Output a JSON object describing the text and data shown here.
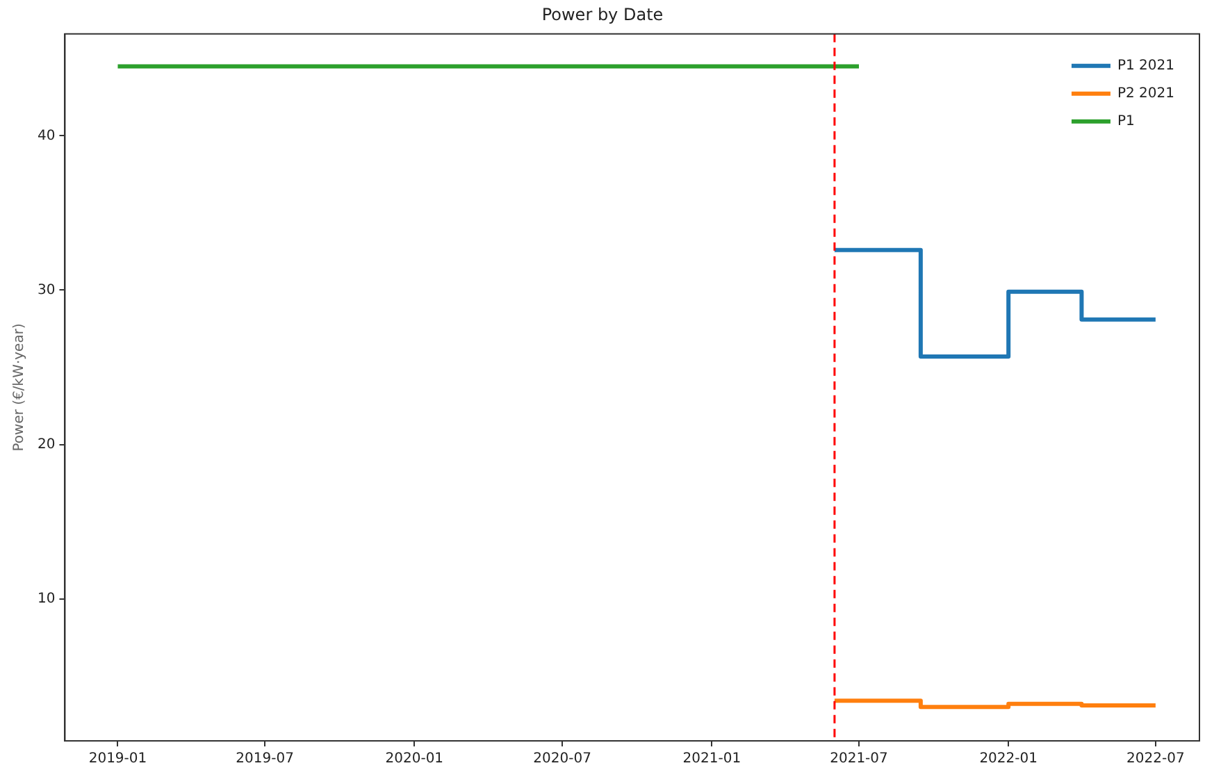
{
  "chart_data": {
    "type": "step",
    "title": "Power by Date",
    "ylabel": "Power (€/kW·year)",
    "xlim": [
      "2018-10-28",
      "2022-08-24"
    ],
    "xticks": [
      {
        "value": "2019-01",
        "label": "2019-01"
      },
      {
        "value": "2019-07",
        "label": "2019-07"
      },
      {
        "value": "2020-01",
        "label": "2020-01"
      },
      {
        "value": "2020-07",
        "label": "2020-07"
      },
      {
        "value": "2021-01",
        "label": "2021-01"
      },
      {
        "value": "2021-07",
        "label": "2021-07"
      },
      {
        "value": "2022-01",
        "label": "2022-01"
      },
      {
        "value": "2022-07",
        "label": "2022-07"
      }
    ],
    "ylim": [
      0.8,
      46.6
    ],
    "yticks": [
      10,
      20,
      30,
      40
    ],
    "series": [
      {
        "name": "P1 2021",
        "color": "#1f77b4",
        "x": [
          "2021-06-01",
          "2021-09-15",
          "2022-01-01",
          "2022-04-01",
          "2022-07-01"
        ],
        "values": [
          32.6,
          25.7,
          29.9,
          28.1,
          28.1
        ]
      },
      {
        "name": "P2 2021",
        "color": "#ff7f0e",
        "x": [
          "2021-06-01",
          "2021-09-15",
          "2022-01-01",
          "2022-04-01",
          "2022-07-01"
        ],
        "values": [
          3.4,
          3.0,
          3.2,
          3.1,
          3.1
        ]
      },
      {
        "name": "P1",
        "color": "#2ca02c",
        "x": [
          "2019-01-01",
          "2021-07-01"
        ],
        "values": [
          44.5,
          44.5
        ]
      }
    ],
    "ref_lines": [
      {
        "axis": "x",
        "value": "2021-06-01",
        "label": null,
        "color": "#ff0000",
        "line_style": "dashed"
      }
    ],
    "grid": false,
    "legend": "top right",
    "marker": "none",
    "line_style": "solid"
  }
}
